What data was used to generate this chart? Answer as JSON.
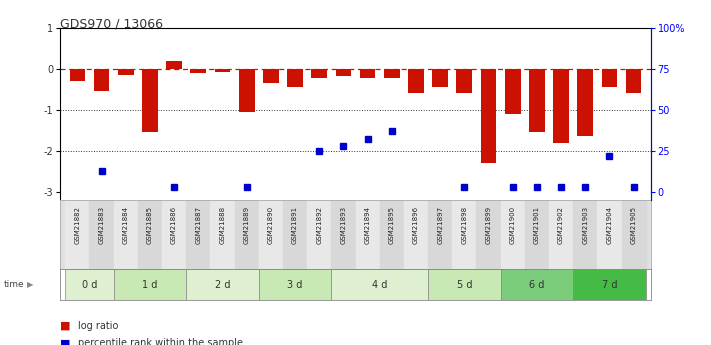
{
  "title": "GDS970 / 13066",
  "samples": [
    "GSM21882",
    "GSM21883",
    "GSM21884",
    "GSM21885",
    "GSM21886",
    "GSM21887",
    "GSM21888",
    "GSM21889",
    "GSM21890",
    "GSM21891",
    "GSM21892",
    "GSM21893",
    "GSM21894",
    "GSM21895",
    "GSM21896",
    "GSM21897",
    "GSM21898",
    "GSM21899",
    "GSM21900",
    "GSM21901",
    "GSM21902",
    "GSM21903",
    "GSM21904",
    "GSM21905"
  ],
  "log_ratio": [
    -0.3,
    -0.55,
    -0.15,
    -1.55,
    0.18,
    -0.1,
    -0.08,
    -1.05,
    -0.35,
    -0.45,
    -0.22,
    -0.18,
    -0.22,
    -0.22,
    -0.6,
    -0.45,
    -0.6,
    -2.3,
    -1.1,
    -1.55,
    -1.8,
    -1.65,
    -0.45,
    -0.6
  ],
  "percentile_rank": [
    null,
    13,
    null,
    null,
    3,
    null,
    null,
    3,
    null,
    null,
    25,
    28,
    32,
    37,
    null,
    null,
    3,
    null,
    3,
    3,
    3,
    3,
    22,
    3
  ],
  "time_groups": [
    {
      "label": "0 d",
      "start": 0,
      "end": 2,
      "color": "#dff0d0"
    },
    {
      "label": "1 d",
      "start": 2,
      "end": 5,
      "color": "#c8e8b4"
    },
    {
      "label": "2 d",
      "start": 5,
      "end": 8,
      "color": "#dff0d0"
    },
    {
      "label": "3 d",
      "start": 8,
      "end": 11,
      "color": "#c8e8b4"
    },
    {
      "label": "4 d",
      "start": 11,
      "end": 15,
      "color": "#dff0d0"
    },
    {
      "label": "5 d",
      "start": 15,
      "end": 18,
      "color": "#c8e8b4"
    },
    {
      "label": "6 d",
      "start": 18,
      "end": 21,
      "color": "#7acc7a"
    },
    {
      "label": "7 d",
      "start": 21,
      "end": 24,
      "color": "#44bb44"
    }
  ],
  "bar_color": "#cc1100",
  "dot_color": "#0000cc",
  "ylim": [
    -3.2,
    1.0
  ],
  "yticks": [
    1,
    0,
    -1,
    -2,
    -3
  ],
  "right_ytick_labels": [
    "100%",
    "75",
    "50",
    "25",
    "0"
  ],
  "right_ytick_positions": [
    1.0,
    0.0,
    -1.0,
    -2.0,
    -3.0
  ],
  "hlines": [
    0,
    -1,
    -2
  ],
  "hline_styles": [
    "dashdot",
    "dotted",
    "dotted"
  ],
  "hline_colors": [
    "#cc1100",
    "#333333",
    "#333333"
  ]
}
